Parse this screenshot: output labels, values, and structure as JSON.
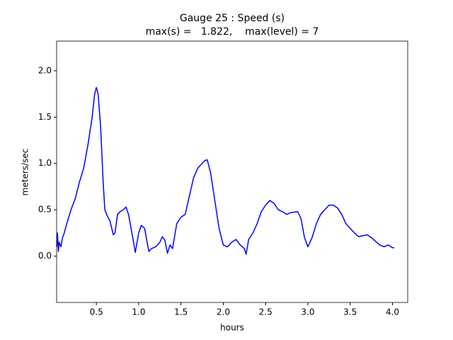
{
  "chart_data": {
    "type": "line",
    "title": "Gauge 25 : Speed (s)",
    "subtitle": "max(s) =   1.822,    max(level) = 7",
    "x_label": "hours",
    "y_label": "meters/sec",
    "xlim": [
      0.03,
      4.18
    ],
    "ylim": [
      -0.5,
      2.32
    ],
    "xticks": [
      0.5,
      {
        "value": 1,
        "label": "1.0"
      },
      1.5,
      {
        "value": 2,
        "label": "2.0"
      },
      2.5,
      {
        "value": 3,
        "label": "3.0"
      },
      3.5,
      {
        "value": 4,
        "label": "4.0"
      }
    ],
    "yticks": [
      {
        "value": 0,
        "label": "0.0"
      },
      0.5,
      {
        "value": 1,
        "label": "1.0"
      },
      1.5,
      {
        "value": 2,
        "label": "2.0"
      }
    ],
    "grid": false,
    "x": [
      0.03,
      0.04,
      0.05,
      0.06,
      0.08,
      0.1,
      0.12,
      0.15,
      0.2,
      0.25,
      0.3,
      0.35,
      0.4,
      0.45,
      0.48,
      0.5,
      0.52,
      0.55,
      0.58,
      0.6,
      0.63,
      0.66,
      0.7,
      0.72,
      0.75,
      0.78,
      0.82,
      0.85,
      0.88,
      0.92,
      0.96,
      1.0,
      1.03,
      1.07,
      1.1,
      1.12,
      1.15,
      1.2,
      1.25,
      1.28,
      1.31,
      1.34,
      1.37,
      1.4,
      1.45,
      1.5,
      1.55,
      1.6,
      1.65,
      1.7,
      1.78,
      1.81,
      1.85,
      1.9,
      1.95,
      2.0,
      2.05,
      2.1,
      2.15,
      2.2,
      2.25,
      2.27,
      2.3,
      2.35,
      2.4,
      2.45,
      2.5,
      2.55,
      2.6,
      2.65,
      2.7,
      2.75,
      2.8,
      2.88,
      2.92,
      2.96,
      3.0,
      3.05,
      3.1,
      3.15,
      3.2,
      3.25,
      3.3,
      3.35,
      3.4,
      3.45,
      3.5,
      3.55,
      3.6,
      3.65,
      3.7,
      3.75,
      3.8,
      3.85,
      3.9,
      3.95,
      4.0,
      4.02
    ],
    "series": [
      {
        "name": "s",
        "color": "#0000ff",
        "values": [
          0.1,
          0.25,
          0.05,
          0.15,
          0.1,
          0.2,
          0.25,
          0.35,
          0.5,
          0.62,
          0.8,
          0.95,
          1.2,
          1.5,
          1.75,
          1.82,
          1.75,
          1.4,
          0.8,
          0.5,
          0.43,
          0.38,
          0.23,
          0.25,
          0.45,
          0.48,
          0.5,
          0.53,
          0.45,
          0.25,
          0.04,
          0.25,
          0.33,
          0.3,
          0.15,
          0.05,
          0.08,
          0.1,
          0.15,
          0.21,
          0.17,
          0.03,
          0.12,
          0.08,
          0.35,
          0.42,
          0.45,
          0.65,
          0.85,
          0.95,
          1.03,
          1.04,
          0.9,
          0.6,
          0.3,
          0.12,
          0.1,
          0.15,
          0.18,
          0.12,
          0.08,
          0.02,
          0.18,
          0.25,
          0.35,
          0.48,
          0.55,
          0.6,
          0.57,
          0.5,
          0.48,
          0.45,
          0.47,
          0.48,
          0.4,
          0.2,
          0.1,
          0.2,
          0.35,
          0.45,
          0.5,
          0.55,
          0.55,
          0.52,
          0.45,
          0.35,
          0.3,
          0.25,
          0.21,
          0.22,
          0.23,
          0.2,
          0.16,
          0.12,
          0.1,
          0.12,
          0.09,
          0.09
        ]
      }
    ]
  }
}
